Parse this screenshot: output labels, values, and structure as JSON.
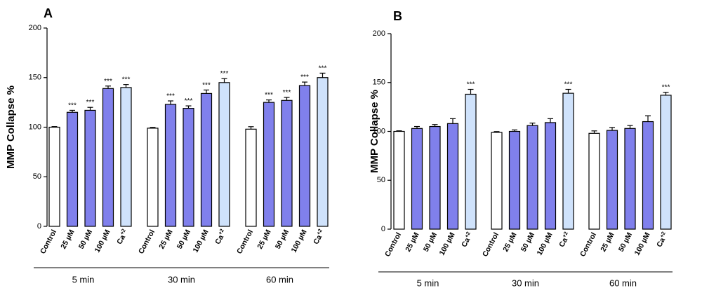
{
  "chart_data": [
    {
      "type": "bar",
      "panel_label": "A",
      "ylabel": "MMP Collapse %",
      "ylim": [
        0,
        200
      ],
      "yticks": [
        "0",
        "50",
        "100",
        "150",
        "200"
      ],
      "groups": [
        {
          "label": "5 min",
          "bars": [
            {
              "category": "Control",
              "value": 100,
              "error": 0.6,
              "sig": ""
            },
            {
              "category": "25 µM",
              "value": 115,
              "error": 2,
              "sig": "***"
            },
            {
              "category": "50 µM",
              "value": 117,
              "error": 3,
              "sig": "***"
            },
            {
              "category": "100 µM",
              "value": 139,
              "error": 2.5,
              "sig": "***"
            },
            {
              "category": "Ca+2",
              "value": 140,
              "error": 3,
              "sig": "***"
            }
          ]
        },
        {
          "label": "30 min",
          "bars": [
            {
              "category": "Control",
              "value": 99,
              "error": 0.8,
              "sig": ""
            },
            {
              "category": "25 µM",
              "value": 123,
              "error": 3.5,
              "sig": "***"
            },
            {
              "category": "50 µM",
              "value": 119,
              "error": 2.5,
              "sig": "***"
            },
            {
              "category": "100 µM",
              "value": 134,
              "error": 3.5,
              "sig": "***"
            },
            {
              "category": "Ca+2",
              "value": 145,
              "error": 4,
              "sig": "***"
            }
          ]
        },
        {
          "label": "60 min",
          "bars": [
            {
              "category": "Control",
              "value": 98,
              "error": 2.5,
              "sig": ""
            },
            {
              "category": "25 µM",
              "value": 125,
              "error": 2.5,
              "sig": "***"
            },
            {
              "category": "50 µM",
              "value": 127,
              "error": 3,
              "sig": "***"
            },
            {
              "category": "100 µM",
              "value": 142,
              "error": 3.5,
              "sig": "***"
            },
            {
              "category": "Ca+2",
              "value": 150,
              "error": 4.5,
              "sig": "***"
            }
          ]
        }
      ]
    },
    {
      "type": "bar",
      "panel_label": "B",
      "ylabel": "MMP Collapse %",
      "ylim": [
        0,
        200
      ],
      "yticks": [
        "0",
        "50",
        "100",
        "150",
        "200"
      ],
      "groups": [
        {
          "label": "5 min",
          "bars": [
            {
              "category": "Control",
              "value": 100,
              "error": 0.6,
              "sig": ""
            },
            {
              "category": "25 µM",
              "value": 103,
              "error": 2,
              "sig": ""
            },
            {
              "category": "50 µM",
              "value": 105,
              "error": 2,
              "sig": ""
            },
            {
              "category": "100 µM",
              "value": 108,
              "error": 5,
              "sig": ""
            },
            {
              "category": "Ca+2",
              "value": 138,
              "error": 5,
              "sig": "***"
            }
          ]
        },
        {
          "label": "30 min",
          "bars": [
            {
              "category": "Control",
              "value": 99,
              "error": 0.8,
              "sig": ""
            },
            {
              "category": "25 µM",
              "value": 100,
              "error": 1.5,
              "sig": ""
            },
            {
              "category": "50 µM",
              "value": 106,
              "error": 2.5,
              "sig": ""
            },
            {
              "category": "100 µM",
              "value": 109,
              "error": 4,
              "sig": ""
            },
            {
              "category": "Ca+2",
              "value": 139,
              "error": 4,
              "sig": "***"
            }
          ]
        },
        {
          "label": "60 min",
          "bars": [
            {
              "category": "Control",
              "value": 98,
              "error": 2.5,
              "sig": ""
            },
            {
              "category": "25 µM",
              "value": 101,
              "error": 3,
              "sig": ""
            },
            {
              "category": "50 µM",
              "value": 103,
              "error": 3,
              "sig": ""
            },
            {
              "category": "100 µM",
              "value": 110,
              "error": 6,
              "sig": ""
            },
            {
              "category": "Ca+2",
              "value": 137,
              "error": 3,
              "sig": "***"
            }
          ]
        }
      ]
    }
  ],
  "colors": {
    "control": "#ffffff",
    "treatment": "#8080ec",
    "calcium": "#cfe2fb",
    "stroke": "#000000"
  }
}
